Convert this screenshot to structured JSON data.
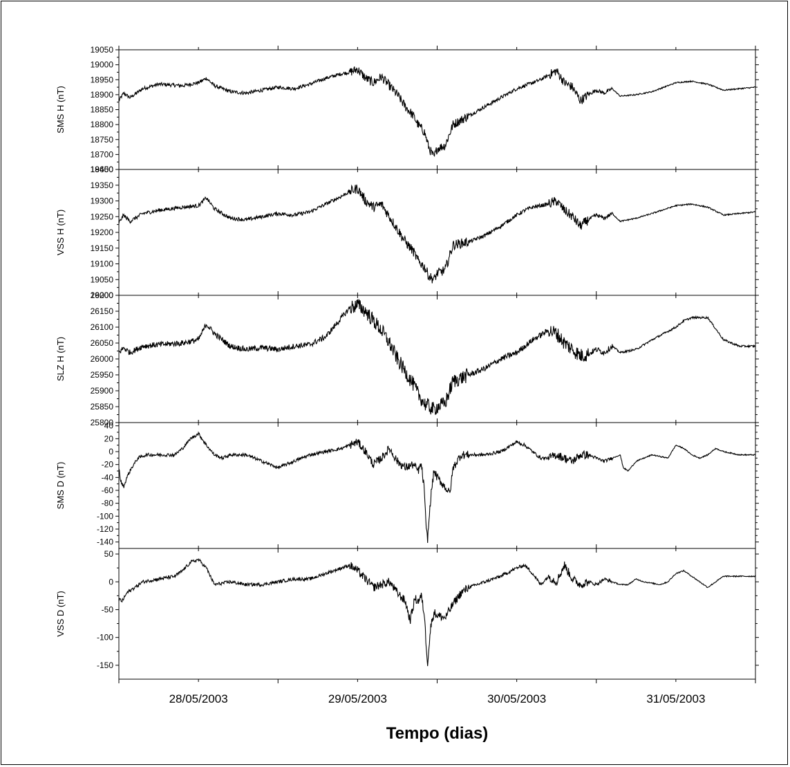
{
  "chart_data": {
    "type": "line",
    "xlabel": "Tempo (dias)",
    "x_tick_labels": [
      "28/05/2003",
      "29/05/2003",
      "30/05/2003",
      "31/05/2003"
    ],
    "x_range_days": [
      27.5,
      31.5
    ],
    "x_minor_ticks_per_day": 2,
    "grid": false,
    "line_color": "#000000",
    "panels": [
      {
        "ylabel": "SMS H (nT)",
        "ylim": [
          18650,
          19050
        ],
        "ytick_step": 50,
        "y_tick_labels": [
          "18650",
          "18700",
          "18750",
          "18800",
          "18850",
          "18900",
          "18950",
          "19000",
          "19050"
        ],
        "noise": 6,
        "series": {
          "x": [
            27.5,
            27.53,
            27.57,
            27.65,
            27.75,
            27.9,
            28.0,
            28.05,
            28.1,
            28.2,
            28.3,
            28.4,
            28.5,
            28.6,
            28.7,
            28.8,
            28.9,
            28.95,
            29.0,
            29.05,
            29.1,
            29.15,
            29.2,
            29.25,
            29.3,
            29.35,
            29.38,
            29.42,
            29.45,
            29.48,
            29.5,
            29.55,
            29.6,
            29.7,
            29.8,
            29.9,
            30.0,
            30.05,
            30.1,
            30.15,
            30.2,
            30.25,
            30.3,
            30.35,
            30.4,
            30.45,
            30.5,
            30.55,
            30.6,
            30.65,
            30.75,
            30.85,
            31.0,
            31.1,
            31.2,
            31.3,
            31.4,
            31.5
          ],
          "y": [
            18880,
            18905,
            18890,
            18920,
            18935,
            18930,
            18940,
            18955,
            18930,
            18910,
            18905,
            18915,
            18925,
            18920,
            18935,
            18955,
            18970,
            18975,
            18985,
            18955,
            18940,
            18960,
            18930,
            18900,
            18860,
            18830,
            18800,
            18775,
            18720,
            18690,
            18720,
            18730,
            18800,
            18830,
            18860,
            18890,
            18920,
            18930,
            18940,
            18950,
            18965,
            18980,
            18940,
            18925,
            18880,
            18900,
            18915,
            18905,
            18920,
            18895,
            18900,
            18910,
            18940,
            18945,
            18935,
            18915,
            18920,
            18925
          ]
        }
      },
      {
        "ylabel": "VSS H (nT)",
        "ylim": [
          19000,
          19400
        ],
        "ytick_step": 50,
        "y_tick_labels": [
          "19000",
          "19050",
          "19100",
          "19150",
          "19200",
          "19250",
          "19300",
          "19350",
          "19400"
        ],
        "noise": 6,
        "series": {
          "x": [
            27.5,
            27.53,
            27.57,
            27.65,
            27.75,
            27.9,
            28.0,
            28.05,
            28.1,
            28.2,
            28.3,
            28.4,
            28.5,
            28.6,
            28.7,
            28.8,
            28.9,
            28.95,
            29.0,
            29.05,
            29.1,
            29.15,
            29.2,
            29.25,
            29.3,
            29.35,
            29.38,
            29.42,
            29.45,
            29.48,
            29.5,
            29.55,
            29.6,
            29.7,
            29.8,
            29.9,
            30.0,
            30.05,
            30.1,
            30.15,
            30.2,
            30.25,
            30.3,
            30.35,
            30.4,
            30.45,
            30.5,
            30.55,
            30.6,
            30.65,
            30.75,
            30.85,
            31.0,
            31.1,
            31.2,
            31.3,
            31.4,
            31.5
          ],
          "y": [
            19230,
            19255,
            19235,
            19260,
            19270,
            19280,
            19285,
            19310,
            19275,
            19245,
            19240,
            19250,
            19260,
            19255,
            19265,
            19290,
            19315,
            19330,
            19340,
            19300,
            19280,
            19290,
            19250,
            19210,
            19170,
            19140,
            19110,
            19090,
            19060,
            19050,
            19070,
            19080,
            19160,
            19170,
            19190,
            19220,
            19255,
            19270,
            19280,
            19285,
            19290,
            19300,
            19270,
            19250,
            19220,
            19240,
            19255,
            19245,
            19260,
            19235,
            19245,
            19260,
            19285,
            19290,
            19280,
            19255,
            19260,
            19265
          ]
        }
      },
      {
        "ylabel": "SLZ H (nT)",
        "ylim": [
          25800,
          26200
        ],
        "ytick_step": 50,
        "y_tick_labels": [
          "25800",
          "25850",
          "25900",
          "25950",
          "26000",
          "26050",
          "26100",
          "26150",
          "26200"
        ],
        "noise": 9,
        "series": {
          "x": [
            27.5,
            27.53,
            27.57,
            27.65,
            27.75,
            27.9,
            28.0,
            28.05,
            28.1,
            28.2,
            28.3,
            28.4,
            28.5,
            28.6,
            28.7,
            28.8,
            28.9,
            28.95,
            29.0,
            29.05,
            29.1,
            29.15,
            29.2,
            29.25,
            29.3,
            29.35,
            29.38,
            29.42,
            29.45,
            29.48,
            29.5,
            29.55,
            29.6,
            29.7,
            29.8,
            29.9,
            30.0,
            30.05,
            30.1,
            30.15,
            30.2,
            30.25,
            30.3,
            30.35,
            30.4,
            30.45,
            30.5,
            30.55,
            30.6,
            30.65,
            30.75,
            30.85,
            31.0,
            31.05,
            31.1,
            31.2,
            31.3,
            31.4,
            31.5
          ],
          "y": [
            26020,
            26035,
            26020,
            26040,
            26045,
            26050,
            26060,
            26110,
            26080,
            26040,
            26030,
            26035,
            26030,
            26040,
            26045,
            26070,
            26130,
            26160,
            26170,
            26150,
            26120,
            26090,
            26050,
            26000,
            25960,
            25920,
            25890,
            25860,
            25850,
            25840,
            25850,
            25860,
            25930,
            25950,
            25970,
            26000,
            26020,
            26040,
            26060,
            26075,
            26090,
            26080,
            26050,
            26030,
            26010,
            26015,
            26030,
            26020,
            26040,
            26020,
            26030,
            26060,
            26100,
            26120,
            26130,
            26130,
            26060,
            26040,
            26040
          ]
        }
      },
      {
        "ylabel": "SMS D (nT)",
        "ylim": [
          -150,
          45
        ],
        "ytick_step": 20,
        "y_tick_labels": [
          "-140",
          "-120",
          "-100",
          "-80",
          "-60",
          "-40",
          "-20",
          "0",
          "20",
          "40"
        ],
        "noise": 2.5,
        "series": {
          "x": [
            27.5,
            27.51,
            27.53,
            27.55,
            27.58,
            27.62,
            27.67,
            27.75,
            27.85,
            27.9,
            27.95,
            28.0,
            28.05,
            28.1,
            28.15,
            28.2,
            28.3,
            28.4,
            28.5,
            28.6,
            28.7,
            28.8,
            28.9,
            28.95,
            29.0,
            29.05,
            29.1,
            29.15,
            29.2,
            29.25,
            29.3,
            29.35,
            29.38,
            29.4,
            29.42,
            29.43,
            29.44,
            29.46,
            29.48,
            29.5,
            29.55,
            29.58,
            29.6,
            29.65,
            29.7,
            29.8,
            29.9,
            30.0,
            30.05,
            30.1,
            30.15,
            30.2,
            30.25,
            30.3,
            30.35,
            30.4,
            30.45,
            30.5,
            30.55,
            30.6,
            30.65,
            30.67,
            30.7,
            30.75,
            30.85,
            30.95,
            31.0,
            31.05,
            31.1,
            31.15,
            31.2,
            31.25,
            31.3,
            31.4,
            31.5
          ],
          "y": [
            -25,
            -45,
            -55,
            -40,
            -25,
            -10,
            -5,
            -5,
            -5,
            5,
            20,
            28,
            10,
            -5,
            -10,
            -5,
            -5,
            -15,
            -25,
            -15,
            -5,
            0,
            5,
            10,
            15,
            0,
            -20,
            -10,
            5,
            -15,
            -25,
            -20,
            -30,
            -20,
            -60,
            -120,
            -135,
            -70,
            -30,
            -40,
            -55,
            -65,
            -25,
            -5,
            -5,
            -5,
            0,
            15,
            10,
            0,
            -10,
            -10,
            -5,
            -10,
            -15,
            -5,
            -5,
            -10,
            -15,
            -10,
            -5,
            -25,
            -30,
            -15,
            -5,
            -10,
            10,
            5,
            -5,
            -10,
            -5,
            5,
            0,
            -5,
            -5
          ]
        }
      },
      {
        "ylabel": "VSS D (nT)",
        "ylim": [
          -175,
          60
        ],
        "ytick_step": 50,
        "y_tick_labels": [
          "-150",
          "-100",
          "-50",
          "0",
          "50"
        ],
        "noise": 3,
        "series": {
          "x": [
            27.5,
            27.52,
            27.55,
            27.6,
            27.65,
            27.75,
            27.85,
            27.9,
            27.95,
            28.0,
            28.05,
            28.1,
            28.2,
            28.3,
            28.4,
            28.5,
            28.6,
            28.7,
            28.8,
            28.9,
            28.95,
            29.0,
            29.05,
            29.1,
            29.15,
            29.2,
            29.25,
            29.3,
            29.33,
            29.36,
            29.38,
            29.4,
            29.42,
            29.43,
            29.44,
            29.46,
            29.48,
            29.5,
            29.55,
            29.6,
            29.65,
            29.7,
            29.8,
            29.9,
            30.0,
            30.05,
            30.1,
            30.15,
            30.2,
            30.25,
            30.3,
            30.35,
            30.4,
            30.45,
            30.5,
            30.55,
            30.6,
            30.65,
            30.7,
            30.75,
            30.8,
            30.9,
            30.95,
            31.0,
            31.05,
            31.1,
            31.2,
            31.3,
            31.4,
            31.5
          ],
          "y": [
            -30,
            -35,
            -20,
            -10,
            0,
            5,
            10,
            20,
            35,
            40,
            25,
            -5,
            0,
            -5,
            -5,
            0,
            5,
            5,
            15,
            25,
            30,
            20,
            5,
            -10,
            -5,
            0,
            -20,
            -35,
            -70,
            -30,
            -35,
            -25,
            -60,
            -110,
            -145,
            -80,
            -55,
            -60,
            -65,
            -40,
            -20,
            -10,
            0,
            10,
            25,
            30,
            15,
            -5,
            10,
            0,
            30,
            5,
            -5,
            0,
            -5,
            5,
            0,
            -5,
            -5,
            5,
            0,
            -5,
            0,
            15,
            20,
            10,
            -10,
            10,
            10,
            10
          ]
        }
      }
    ]
  }
}
